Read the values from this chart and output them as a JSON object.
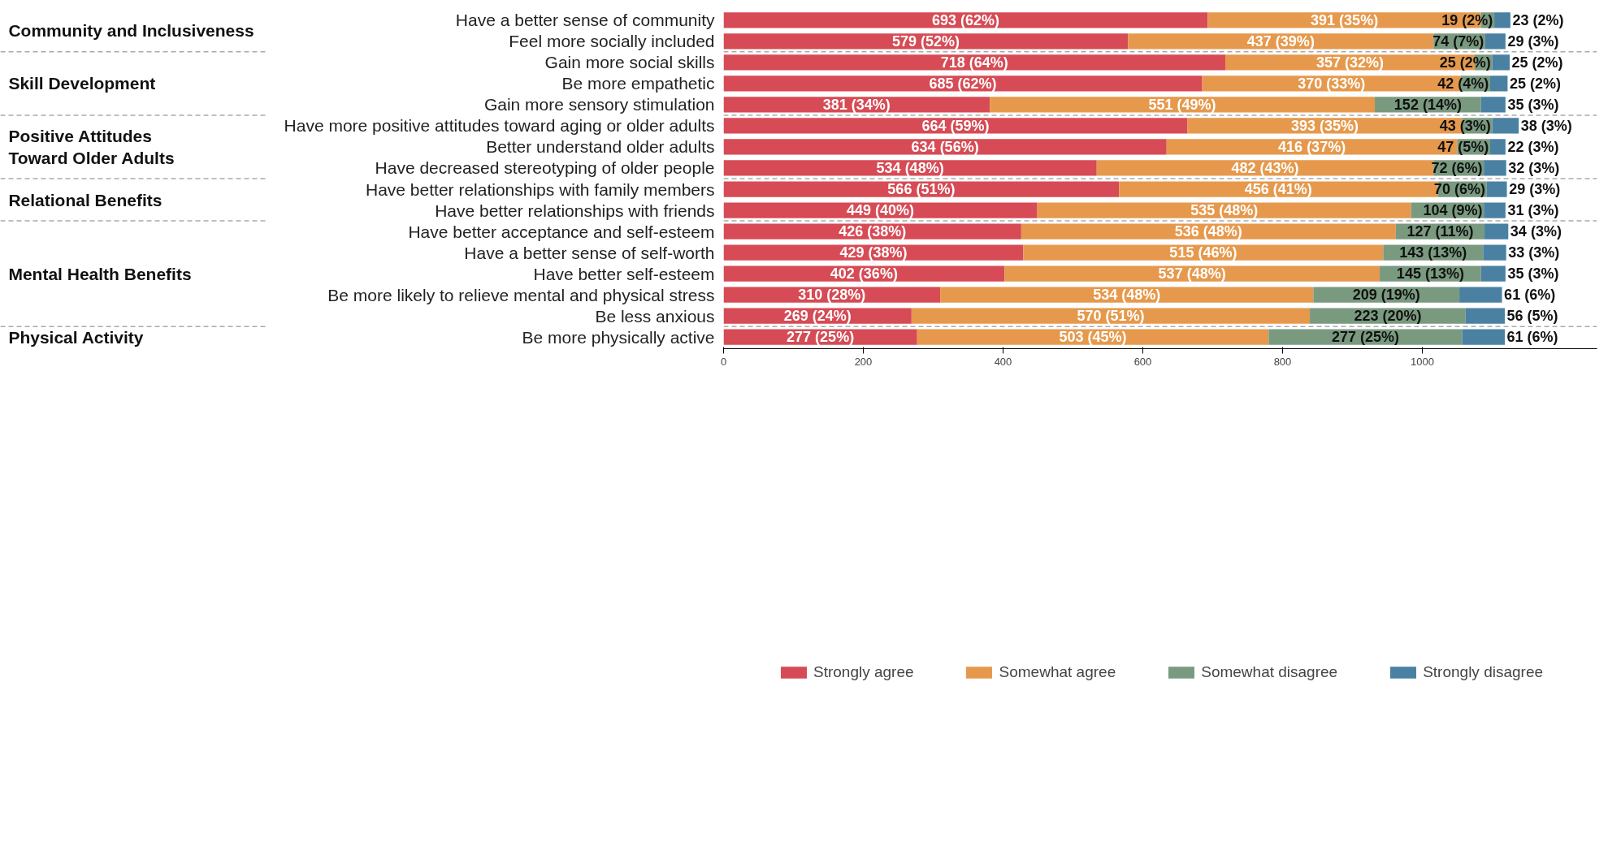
{
  "chart_data": {
    "type": "bar",
    "orientation": "horizontal",
    "stacked": true,
    "categories": [
      "Have a better sense of community",
      "Feel more socially included",
      "Gain more social skills",
      "Be more empathetic",
      "Gain more sensory stimulation",
      "Have more positive attitudes toward aging or older adults",
      "Better understand older adults",
      "Have decreased stereotyping of older people",
      "Have better relationships with family members",
      "Have better relationships with friends",
      "Have better acceptance and self-esteem",
      "Have a better sense of self-worth",
      "Have better self-esteem",
      "Be more likely to relieve mental and physical stress",
      "Be less anxious",
      "Be more physically active"
    ],
    "series": [
      {
        "name": "Strongly agree",
        "color": "#d64b55",
        "values": [
          693,
          579,
          718,
          685,
          381,
          664,
          634,
          534,
          566,
          449,
          426,
          429,
          402,
          310,
          269,
          277
        ],
        "value_labels": [
          "693 (62%)",
          "579 (52%)",
          "718 (64%)",
          "685 (62%)",
          "381 (34%)",
          "664 (59%)",
          "634 (56%)",
          "534 (48%)",
          "566 (51%)",
          "449 (40%)",
          "426 (38%)",
          "429 (38%)",
          "402 (36%)",
          "310 (28%)",
          "269 (24%)",
          "277 (25%)"
        ]
      },
      {
        "name": "Somewhat agree",
        "color": "#e6994c",
        "values": [
          391,
          437,
          357,
          370,
          551,
          393,
          416,
          482,
          456,
          535,
          536,
          515,
          537,
          534,
          570,
          503
        ],
        "value_labels": [
          "391 (35%)",
          "437 (39%)",
          "357 (32%)",
          "370 (33%)",
          "551 (49%)",
          "393 (35%)",
          "416 (37%)",
          "482 (43%)",
          "456 (41%)",
          "535 (48%)",
          "536 (48%)",
          "515 (46%)",
          "537 (48%)",
          "534 (48%)",
          "570 (51%)",
          "503 (45%)"
        ]
      },
      {
        "name": "Somewhat disagree",
        "color": "#7a9a80",
        "values": [
          19,
          74,
          25,
          42,
          152,
          43,
          47,
          72,
          70,
          104,
          127,
          143,
          145,
          209,
          223,
          277
        ],
        "value_labels": [
          "19 (2%)",
          "74 (7%)",
          "25 (2%)",
          "42 (4%)",
          "152 (14%)",
          "43 (3%)",
          "47 (5%)",
          "72 (6%)",
          "70 (6%)",
          "104 (9%)",
          "127 (11%)",
          "143 (13%)",
          "145 (13%)",
          "209 (19%)",
          "223 (20%)",
          "277 (25%)"
        ]
      },
      {
        "name": "Strongly disagree",
        "color": "#4a81a3",
        "values": [
          23,
          29,
          25,
          25,
          35,
          38,
          22,
          32,
          29,
          31,
          34,
          33,
          35,
          61,
          56,
          61
        ],
        "value_labels": [
          "23 (2%)",
          "29 (3%)",
          "25 (2%)",
          "25 (2%)",
          "35 (3%)",
          "38 (3%)",
          "22 (3%)",
          "32 (3%)",
          "29 (3%)",
          "31 (3%)",
          "34 (3%)",
          "33 (3%)",
          "35 (3%)",
          "61 (6%)",
          "56 (5%)",
          "61 (6%)"
        ]
      }
    ],
    "xlim": [
      0,
      1250
    ],
    "xticks": [
      0,
      200,
      400,
      600,
      800,
      1000
    ],
    "grid": false,
    "legend": "bottom",
    "annotations": [
      "Community and Inclusiveness",
      "Skill Development",
      "Positive Attitudes\nToward Older Adults",
      "Relational Benefits",
      "Mental Health Benefits",
      "Physical Activity"
    ]
  }
}
